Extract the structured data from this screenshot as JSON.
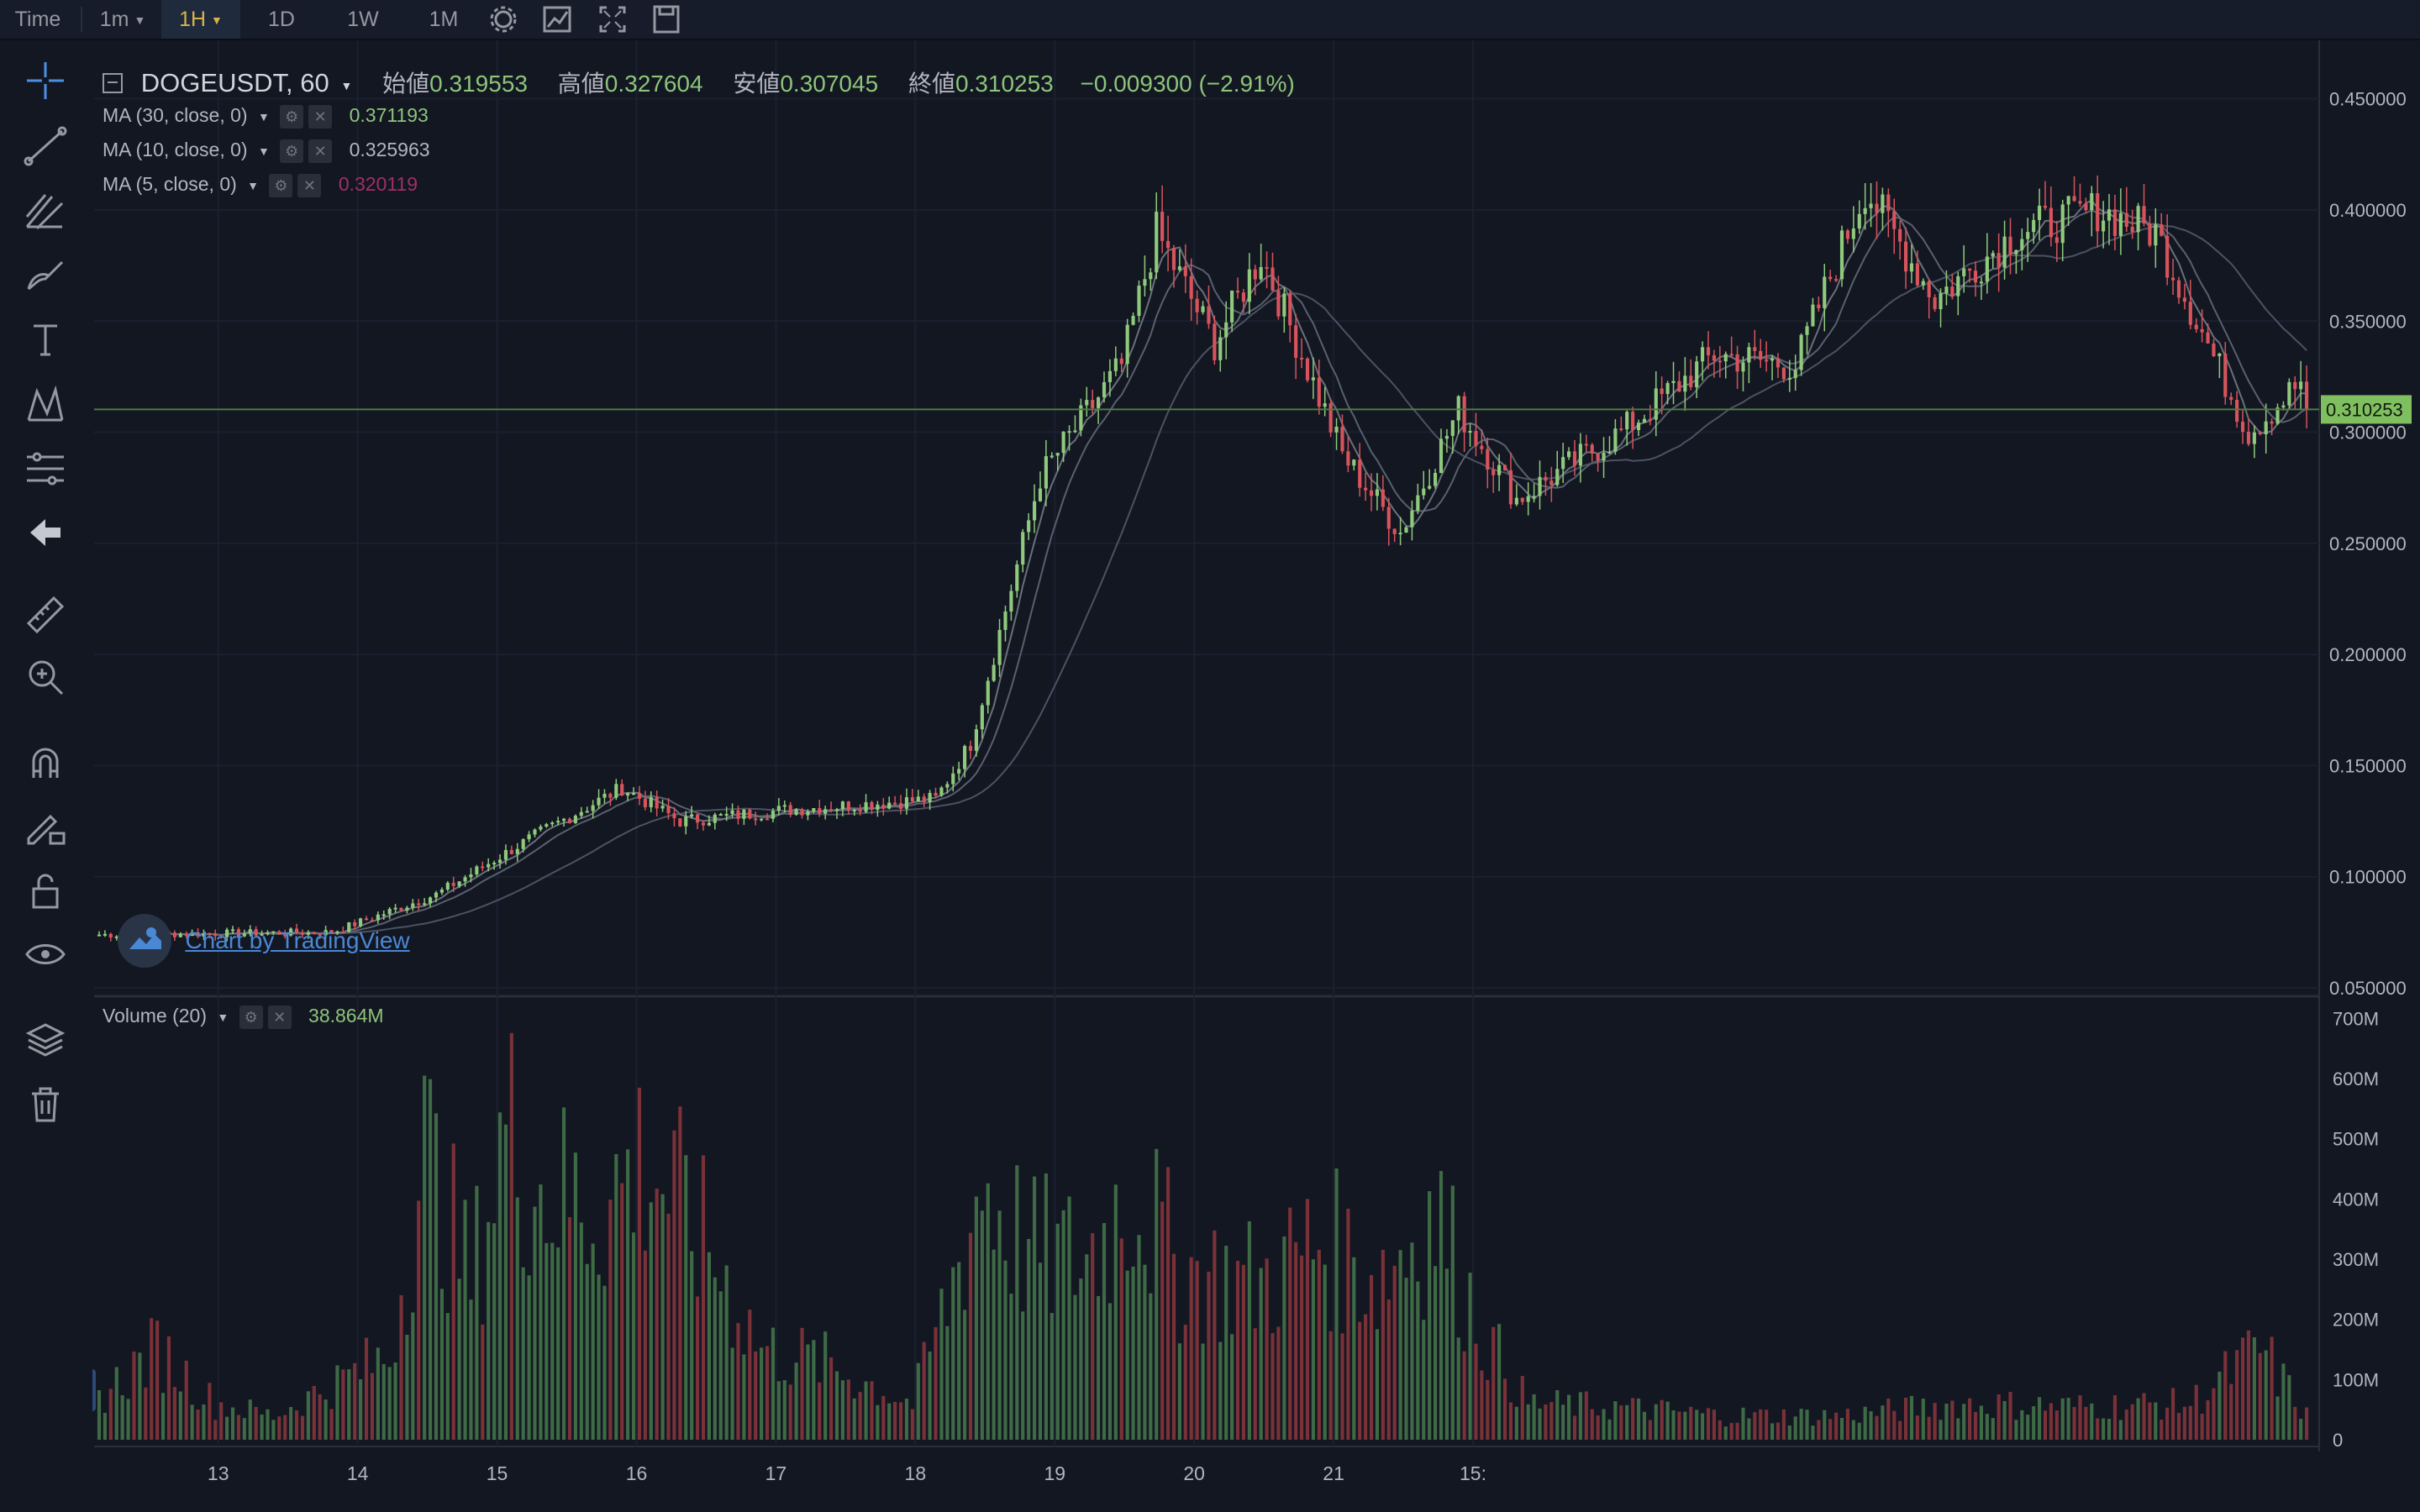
{
  "toolbar": {
    "time_label": "Time",
    "intervals": [
      "1m",
      "1H",
      "1D",
      "1W",
      "1M"
    ],
    "active_interval": "1H"
  },
  "legend": {
    "symbol": "DOGEUSDT, 60",
    "open_label": "始値",
    "open": "0.319553",
    "high_label": "高値",
    "high": "0.327604",
    "low_label": "安値",
    "low": "0.307045",
    "close_label": "終値",
    "close": "0.310253",
    "change": "−0.009300 (−2.91%)",
    "indicators": [
      {
        "label": "MA (30, close, 0)",
        "value": "0.371193",
        "color": "#8dc47a"
      },
      {
        "label": "MA (10, close, 0)",
        "value": "0.325963",
        "color": "#b2b5be"
      },
      {
        "label": "MA (5, close, 0)",
        "value": "0.320119",
        "color": "#a02f66"
      }
    ],
    "volume_label": "Volume (20)",
    "volume_value": "38.864M"
  },
  "watermark": "Chart by TradingView",
  "colors": {
    "up": "#8fca7c",
    "down": "#d7545c",
    "volume_up": "#3e6a45",
    "volume_down": "#7a3138",
    "last_price_bg": "#7fbf5f",
    "background": "#131722"
  },
  "chart_data": {
    "type": "candlestick",
    "title": "DOGEUSDT, 60",
    "interval": "1H",
    "x_tick_labels": [
      "13",
      "14",
      "15",
      "16",
      "17",
      "18",
      "19",
      "20",
      "21",
      "15:"
    ],
    "price_axis_labels": [
      "0.450000",
      "0.400000",
      "0.350000",
      "0.300000",
      "0.250000",
      "0.200000",
      "0.150000",
      "0.100000",
      "0.050000"
    ],
    "price_range": [
      0.05,
      0.465
    ],
    "last_price": "0.310253",
    "volume_axis_labels": [
      "700M",
      "600M",
      "500M",
      "400M",
      "300M",
      "200M",
      "100M",
      "0"
    ],
    "volume_range_millions": [
      0,
      720
    ],
    "price_waypoints": [
      [
        0,
        0.074
      ],
      [
        40,
        0.075
      ],
      [
        58,
        0.092
      ],
      [
        76,
        0.12
      ],
      [
        90,
        0.14
      ],
      [
        100,
        0.125
      ],
      [
        118,
        0.13
      ],
      [
        144,
        0.135
      ],
      [
        150,
        0.16
      ],
      [
        162,
        0.28
      ],
      [
        176,
        0.33
      ],
      [
        182,
        0.39
      ],
      [
        192,
        0.34
      ],
      [
        200,
        0.38
      ],
      [
        214,
        0.29
      ],
      [
        224,
        0.255
      ],
      [
        234,
        0.31
      ],
      [
        244,
        0.27
      ],
      [
        262,
        0.3
      ],
      [
        278,
        0.335
      ],
      [
        292,
        0.33
      ],
      [
        304,
        0.41
      ],
      [
        316,
        0.36
      ],
      [
        330,
        0.39
      ],
      [
        344,
        0.4
      ],
      [
        354,
        0.39
      ],
      [
        370,
        0.3
      ],
      [
        380,
        0.325
      ]
    ],
    "volume_waypoints_millions": [
      [
        0,
        70
      ],
      [
        10,
        150
      ],
      [
        20,
        60
      ],
      [
        30,
        40
      ],
      [
        40,
        90
      ],
      [
        50,
        140
      ],
      [
        56,
        480
      ],
      [
        64,
        260
      ],
      [
        70,
        520
      ],
      [
        76,
        420
      ],
      [
        86,
        380
      ],
      [
        94,
        470
      ],
      [
        106,
        300
      ],
      [
        114,
        150
      ],
      [
        124,
        130
      ],
      [
        140,
        60
      ],
      [
        146,
        230
      ],
      [
        152,
        430
      ],
      [
        160,
        310
      ],
      [
        170,
        300
      ],
      [
        178,
        420
      ],
      [
        186,
        280
      ],
      [
        200,
        260
      ],
      [
        210,
        330
      ],
      [
        220,
        270
      ],
      [
        230,
        380
      ],
      [
        238,
        180
      ],
      [
        246,
        60
      ],
      [
        260,
        55
      ],
      [
        280,
        40
      ],
      [
        300,
        40
      ],
      [
        320,
        60
      ],
      [
        340,
        55
      ],
      [
        360,
        60
      ],
      [
        372,
        150
      ],
      [
        380,
        40
      ]
    ]
  }
}
